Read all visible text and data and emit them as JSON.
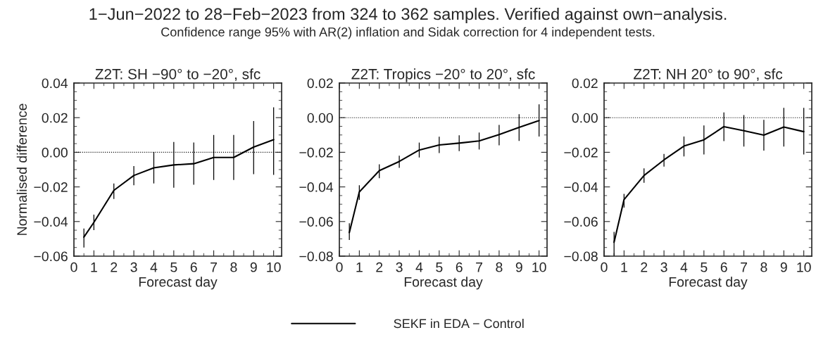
{
  "chart_data": [
    {
      "type": "line",
      "title": "Z2T: SH −90° to −20°, sfc",
      "xlabel": "Forecast day",
      "ylabel": "Normalised difference",
      "annotations": [
        "1−Jun−2022 to 28−Feb−2023 from 324 to 362 samples. Verified against own−analysis.",
        "Confidence range 95% with AR(2) inflation and Sidak correction for 4 independent tests."
      ],
      "x": [
        0.5,
        1,
        2,
        3,
        4,
        5,
        6,
        7,
        8,
        9,
        10
      ],
      "series": [
        {
          "name": "SEKF in EDA − Control",
          "color": "#000000",
          "values": [
            -0.049,
            -0.0405,
            -0.022,
            -0.0134,
            -0.009,
            -0.0073,
            -0.0066,
            -0.003,
            -0.003,
            0.003,
            0.0073
          ],
          "errors": [
            [
              -0.055,
              -0.044
            ],
            [
              -0.045,
              -0.036
            ],
            [
              -0.027,
              -0.018
            ],
            [
              -0.019,
              -0.008
            ],
            [
              -0.018,
              0.0
            ],
            [
              -0.0205,
              0.006
            ],
            [
              -0.0187,
              0.0056
            ],
            [
              -0.016,
              0.01
            ],
            [
              -0.016,
              0.01
            ],
            [
              -0.0126,
              0.018
            ],
            [
              -0.013,
              0.026
            ]
          ]
        }
      ],
      "xlim": [
        0,
        10.4
      ],
      "xticks": [
        0,
        1,
        2,
        3,
        4,
        5,
        6,
        7,
        8,
        9,
        10
      ],
      "ylim": [
        -0.06,
        0.04
      ],
      "yticks": [
        {
          "value": -0.06,
          "label": "−0.06"
        },
        {
          "value": -0.04,
          "label": "−0.04"
        },
        {
          "value": -0.02,
          "label": "−0.02"
        },
        {
          "value": 0.0,
          "label": "0.00"
        },
        {
          "value": 0.02,
          "label": "0.02"
        },
        {
          "value": 0.04,
          "label": "0.04"
        }
      ],
      "ref_lines": [
        {
          "axis": "y",
          "value": 0,
          "line_style": "dotted",
          "color": "#000000"
        }
      ],
      "grid": false,
      "legend": "bottom",
      "marker": "none",
      "line_style": "solid"
    },
    {
      "type": "line",
      "title": "Z2T: Tropics −20° to 20°, sfc",
      "xlabel": "Forecast day",
      "x": [
        0.5,
        1,
        2,
        3,
        4,
        5,
        6,
        7,
        8,
        9,
        10
      ],
      "series": [
        {
          "color": "#000000",
          "values": [
            -0.0664,
            -0.0429,
            -0.0306,
            -0.0253,
            -0.0187,
            -0.0158,
            -0.0147,
            -0.0134,
            -0.0098,
            -0.0056,
            -0.0017
          ],
          "errors": [
            [
              -0.0707,
              -0.061
            ],
            [
              -0.0475,
              -0.039
            ],
            [
              -0.035,
              -0.027
            ],
            [
              -0.029,
              -0.022
            ],
            [
              -0.023,
              -0.0144
            ],
            [
              -0.0204,
              -0.011
            ],
            [
              -0.0193,
              -0.0102
            ],
            [
              -0.0184,
              -0.0086
            ],
            [
              -0.016,
              -0.0042
            ],
            [
              -0.0134,
              0.002
            ],
            [
              -0.0109,
              0.0077
            ]
          ]
        }
      ],
      "xlim": [
        0,
        10.4
      ],
      "xticks": [
        0,
        1,
        2,
        3,
        4,
        5,
        6,
        7,
        8,
        9,
        10
      ],
      "ylim": [
        -0.08,
        0.02
      ],
      "yticks": [
        {
          "value": -0.08,
          "label": "−0.08"
        },
        {
          "value": -0.06,
          "label": "−0.06"
        },
        {
          "value": -0.04,
          "label": "−0.04"
        },
        {
          "value": -0.02,
          "label": "−0.02"
        },
        {
          "value": 0.0,
          "label": "0.00"
        },
        {
          "value": 0.02,
          "label": "0.02"
        }
      ],
      "ref_lines": [
        {
          "axis": "y",
          "value": 0,
          "line_style": "dotted",
          "color": "#000000"
        }
      ],
      "grid": false,
      "marker": "none",
      "line_style": "solid"
    },
    {
      "type": "line",
      "title": "Z2T: NH 20° to 90°, sfc",
      "xlabel": "Forecast day",
      "x": [
        0.5,
        1,
        2,
        3,
        4,
        5,
        6,
        7,
        8,
        9,
        10
      ],
      "series": [
        {
          "color": "#000000",
          "values": [
            -0.072,
            -0.0473,
            -0.0334,
            -0.0244,
            -0.0164,
            -0.0128,
            -0.0052,
            -0.0075,
            -0.0101,
            -0.0054,
            -0.0081
          ],
          "errors": [
            [
              -0.08,
              -0.066
            ],
            [
              -0.052,
              -0.044
            ],
            [
              -0.0376,
              -0.0293
            ],
            [
              -0.0283,
              -0.021
            ],
            [
              -0.0224,
              -0.0109
            ],
            [
              -0.0213,
              -0.0045
            ],
            [
              -0.0135,
              0.003
            ],
            [
              -0.0167,
              0.0015
            ],
            [
              -0.019,
              -0.0012
            ],
            [
              -0.0167,
              0.0057
            ],
            [
              -0.0213,
              0.0057
            ]
          ]
        }
      ],
      "xlim": [
        0,
        10.4
      ],
      "xticks": [
        0,
        1,
        2,
        3,
        4,
        5,
        6,
        7,
        8,
        9,
        10
      ],
      "ylim": [
        -0.08,
        0.02
      ],
      "yticks": [
        {
          "value": -0.08,
          "label": "−0.08"
        },
        {
          "value": -0.06,
          "label": "−0.06"
        },
        {
          "value": -0.04,
          "label": "−0.04"
        },
        {
          "value": -0.02,
          "label": "−0.02"
        },
        {
          "value": 0.0,
          "label": "0.00"
        },
        {
          "value": 0.02,
          "label": "0.02"
        }
      ],
      "ref_lines": [
        {
          "axis": "y",
          "value": 0,
          "line_style": "dotted",
          "color": "#000000"
        }
      ],
      "grid": false,
      "marker": "none",
      "line_style": "solid"
    }
  ]
}
